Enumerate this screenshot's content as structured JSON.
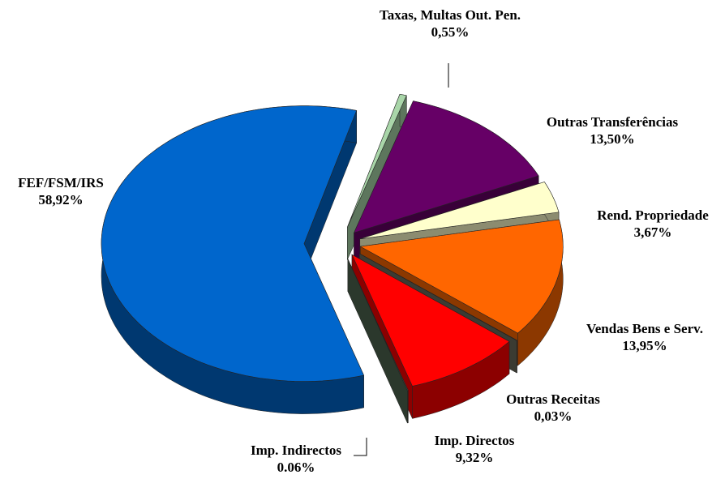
{
  "chart_data": {
    "type": "pie",
    "categories": [
      "Taxas, Multas Out. Pen.",
      "Outras Transferências",
      "Rend. Propriedade",
      "Vendas Bens e Serv.",
      "Outras Receitas",
      "Imp. Directos",
      "Imp. Indirectos",
      "FEF/FSM/IRS"
    ],
    "values": [
      0.55,
      13.5,
      3.67,
      13.95,
      0.03,
      9.32,
      0.06,
      58.92
    ],
    "value_labels": [
      "0,55%",
      "13,50%",
      "3,67%",
      "13,95%",
      "0,03%",
      "9,32%",
      "0.06%",
      "58,92%"
    ],
    "colors": [
      "#a9d6a9",
      "#660066",
      "#ffffcc",
      "#ff6600",
      "#6b6b5a",
      "#ff0000",
      "#4f6650",
      "#0066cc"
    ]
  }
}
